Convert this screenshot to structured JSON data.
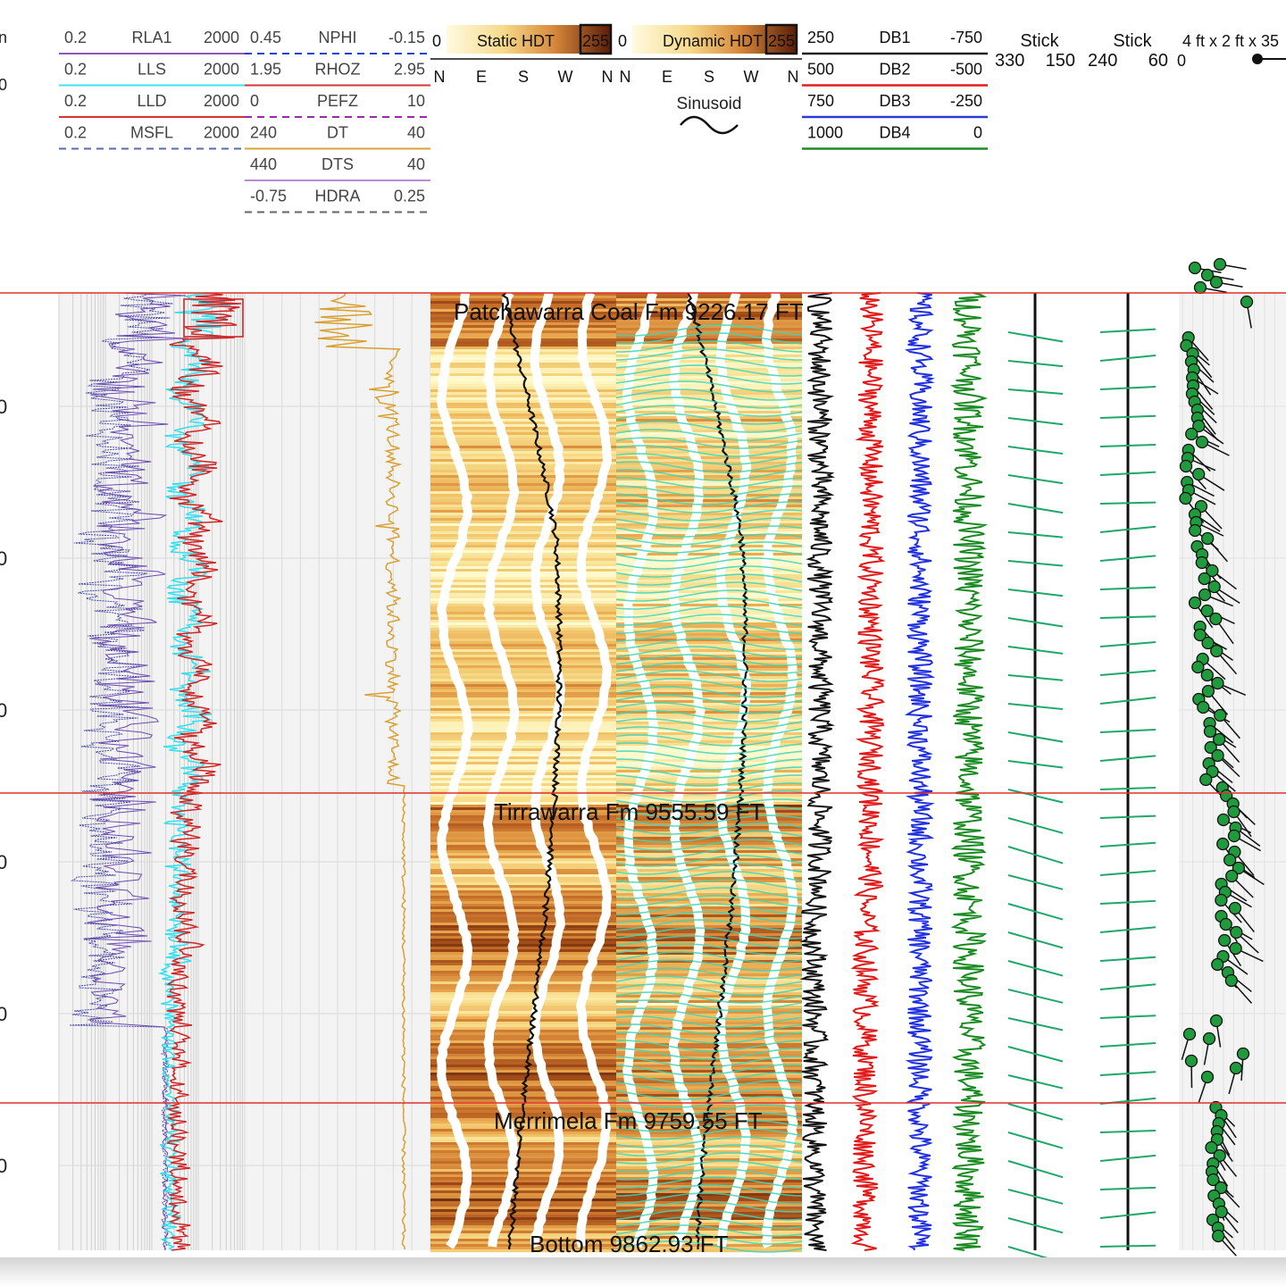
{
  "depth_axis": {
    "unit_fragment": "n",
    "top_fragment": "0",
    "tick_fragments": [
      "0",
      "0",
      "0",
      "0",
      "0",
      "0"
    ]
  },
  "header": {
    "resistivity": [
      {
        "left": "0.2",
        "name": "RLA1",
        "right": "2000",
        "color": "#8b5ab0",
        "dash": false
      },
      {
        "left": "0.2",
        "name": "LLS",
        "right": "2000",
        "color": "#3fe3f0",
        "dash": false
      },
      {
        "left": "0.2",
        "name": "LLD",
        "right": "2000",
        "color": "#d43434",
        "dash": false
      },
      {
        "left": "0.2",
        "name": "MSFL",
        "right": "2000",
        "color": "#5a6bb0",
        "dash": true
      }
    ],
    "porosity": [
      {
        "left": "0.45",
        "name": "NPHI",
        "right": "-0.15",
        "color": "#2540d8",
        "dash": true
      },
      {
        "left": "1.95",
        "name": "RHOZ",
        "right": "2.95",
        "color": "#d43434",
        "dash": false
      },
      {
        "left": "0",
        "name": "PEFZ",
        "right": "10",
        "color": "#9a2aa8",
        "dash": true
      },
      {
        "left": "240",
        "name": "DT",
        "right": "40",
        "color": "#d9a636",
        "dash": false
      },
      {
        "left": "440",
        "name": "DTS",
        "right": "40",
        "color": "#b88ad8",
        "dash": false
      },
      {
        "left": "-0.75",
        "name": "HDRA",
        "right": "0.25",
        "color": "#666666",
        "dash": true
      }
    ],
    "static_image": {
      "min": "0",
      "label": "Static HDT",
      "max": "255",
      "dirs": [
        "N",
        "E",
        "S",
        "W",
        "N"
      ]
    },
    "dynamic_image": {
      "min": "0",
      "label": "Dynamic HDT",
      "max": "255",
      "dirs": [
        "N",
        "E",
        "S",
        "W",
        "N"
      ],
      "sinusoid_label": "Sinusoid"
    },
    "db_curves": [
      {
        "left": "250",
        "name": "DB1",
        "right": "-750",
        "color": "#222222"
      },
      {
        "left": "500",
        "name": "DB2",
        "right": "-500",
        "color": "#e02020"
      },
      {
        "left": "750",
        "name": "DB3",
        "right": "-250",
        "color": "#2a3cd8"
      },
      {
        "left": "1000",
        "name": "DB4",
        "right": "0",
        "color": "#1f8a2a"
      }
    ],
    "stick1": {
      "title": "Stick",
      "left": "330",
      "right": "150"
    },
    "stick2": {
      "title": "Stick",
      "left": "240",
      "right": "60"
    },
    "tadpole": {
      "title": "4 ft x 2 ft x 35",
      "left": "0"
    }
  },
  "chart_data": {
    "type": "line",
    "title": "",
    "colors": {
      "formation_line": "#e03030",
      "tadpole_fill": "#1f9a3c",
      "stick_color": "#1fa86a",
      "grid": "#d8d8d8"
    },
    "formation_tops": [
      {
        "label": "Patchawarra Coal Fm 9226.17 FT",
        "depth": 9226.17
      },
      {
        "label": "Tirrawarra Fm 9555.59 FT",
        "depth": 9555.59
      },
      {
        "label": "Merrimela Fm 9759.55 FT",
        "depth": 9759.55
      },
      {
        "label": "Bottom 9862.93 FT",
        "depth": 9862.93
      }
    ],
    "depth_range_ft": [
      9226,
      9864
    ],
    "grid": true
  }
}
